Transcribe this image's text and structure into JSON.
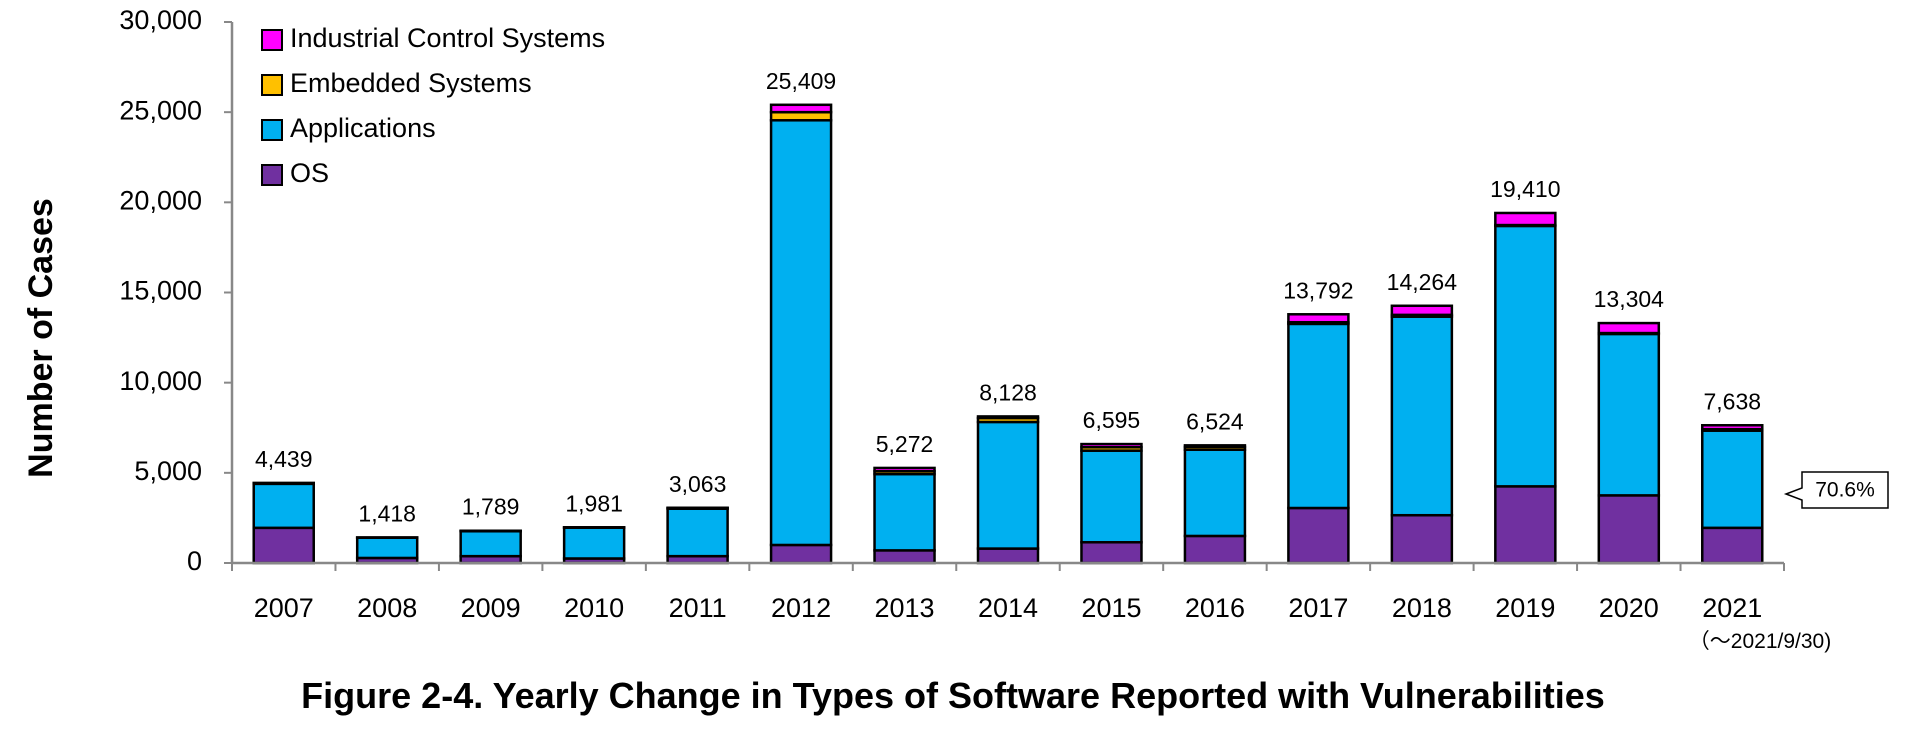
{
  "chart_data": {
    "type": "bar",
    "stacked": true,
    "title": "Figure 2-4. Yearly Change in Types of Software Reported with Vulnerabilities",
    "xlabel": "",
    "ylabel": "Number of Cases",
    "ylim": [
      0,
      30000
    ],
    "yticks": [
      0,
      5000,
      10000,
      15000,
      20000,
      25000,
      30000
    ],
    "ytick_labels": [
      "0",
      "5,000",
      "10,000",
      "15,000",
      "20,000",
      "25,000",
      "30,000"
    ],
    "categories": [
      "2007",
      "2008",
      "2009",
      "2010",
      "2011",
      "2012",
      "2013",
      "2014",
      "2015",
      "2016",
      "2017",
      "2018",
      "2019",
      "2020",
      "2021"
    ],
    "category_note": "（～2021/9/30)",
    "series": [
      {
        "name": "OS",
        "color": "#7030a0",
        "values": [
          1950,
          280,
          380,
          250,
          380,
          1000,
          700,
          800,
          1150,
          1500,
          3050,
          2650,
          4250,
          3750,
          1950
        ]
      },
      {
        "name": "Applications",
        "color": "#00b0f0",
        "values": [
          2440,
          1120,
          1380,
          1710,
          2630,
          23550,
          4230,
          7020,
          5080,
          4780,
          10210,
          11010,
          14440,
          8950,
          5390
        ]
      },
      {
        "name": "Embedded Systems",
        "color": "#ffc000",
        "values": [
          40,
          10,
          20,
          10,
          40,
          450,
          160,
          220,
          190,
          160,
          90,
          100,
          50,
          50,
          80
        ]
      },
      {
        "name": "Industrial Control Systems",
        "color": "#ff00ff",
        "values": [
          9,
          8,
          9,
          11,
          13,
          409,
          182,
          88,
          175,
          84,
          442,
          504,
          670,
          554,
          218
        ]
      }
    ],
    "totals": [
      "4,439",
      "1,418",
      "1,789",
      "1,981",
      "3,063",
      "25,409",
      "5,272",
      "8,128",
      "6,595",
      "6,524",
      "13,792",
      "14,264",
      "19,410",
      "13,304",
      "7,638"
    ],
    "legend_order": [
      "Industrial Control Systems",
      "Embedded Systems",
      "Applications",
      "OS"
    ],
    "legend_position": "top-left",
    "annotation": {
      "text": "70.6%",
      "category": "2021"
    },
    "grid": false
  }
}
